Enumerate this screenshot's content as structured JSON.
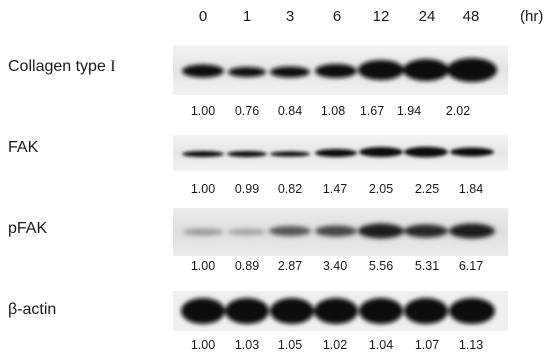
{
  "time_points": [
    "0",
    "1",
    "3",
    "6",
    "12",
    "24",
    "48"
  ],
  "time_unit": "(hr)",
  "rows": [
    {
      "label_prefix": "Collagen type ",
      "label_roman": "I",
      "values": [
        "1.00",
        "0.76",
        "0.84",
        "1.08",
        "1.67",
        "1.94",
        "2.02"
      ],
      "relative_intensity": [
        1.0,
        0.76,
        0.84,
        1.08,
        1.67,
        1.94,
        2.02
      ]
    },
    {
      "label": "FAK",
      "values": [
        "1.00",
        "0.99",
        "0.82",
        "1.47",
        "2.05",
        "2.25",
        "1.84"
      ],
      "relative_intensity": [
        1.0,
        0.99,
        0.82,
        1.47,
        2.05,
        2.25,
        1.84
      ]
    },
    {
      "label": "pFAK",
      "values": [
        "1.00",
        "0.89",
        "2.87",
        "3.40",
        "5.56",
        "5.31",
        "6.17"
      ],
      "relative_intensity": [
        1.0,
        0.89,
        2.87,
        3.4,
        5.56,
        5.31,
        6.17
      ]
    },
    {
      "label": "β-actin",
      "values": [
        "1.00",
        "1.03",
        "1.05",
        "1.02",
        "1.04",
        "1.07",
        "1.13"
      ],
      "relative_intensity": [
        1.0,
        1.03,
        1.05,
        1.02,
        1.04,
        1.07,
        1.13
      ]
    }
  ],
  "colors": {
    "band": "#0d0d0d",
    "membrane": "#e9e9e9",
    "text": "#1a1a1a"
  }
}
